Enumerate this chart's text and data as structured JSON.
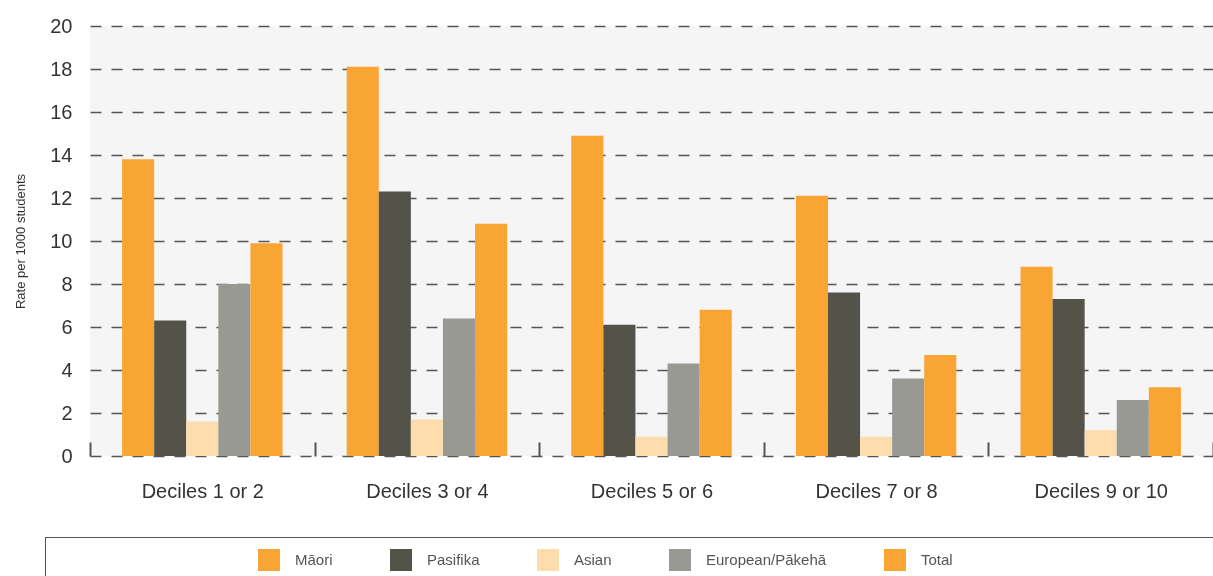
{
  "chart_data": {
    "type": "bar",
    "ylabel": "Rate per 1000 students",
    "categories": [
      "Deciles 1 or 2",
      "Deciles 3 or 4",
      "Deciles 5 or 6",
      "Deciles 7 or 8",
      "Deciles 9 or 10"
    ],
    "series": [
      {
        "name": "Māori",
        "color": "#f9a533",
        "values": [
          13.8,
          18.1,
          14.9,
          12.1,
          8.8
        ]
      },
      {
        "name": "Pasifika",
        "color": "#54534a",
        "values": [
          6.3,
          12.3,
          6.1,
          7.6,
          7.3
        ]
      },
      {
        "name": "Asian",
        "color": "#fddcad",
        "values": [
          1.6,
          1.7,
          0.9,
          0.9,
          1.2
        ]
      },
      {
        "name": "European/Pākehā",
        "color": "#999994",
        "values": [
          8.0,
          6.4,
          4.3,
          3.6,
          2.6
        ]
      },
      {
        "name": "Total",
        "color": "#f9a533",
        "values": [
          9.9,
          10.8,
          6.8,
          4.7,
          3.2
        ]
      }
    ],
    "ylim": [
      0,
      20
    ],
    "yticks": [
      0,
      2,
      4,
      6,
      8,
      10,
      12,
      14,
      16,
      18,
      20
    ],
    "grid": "y",
    "legend": "bottom"
  }
}
